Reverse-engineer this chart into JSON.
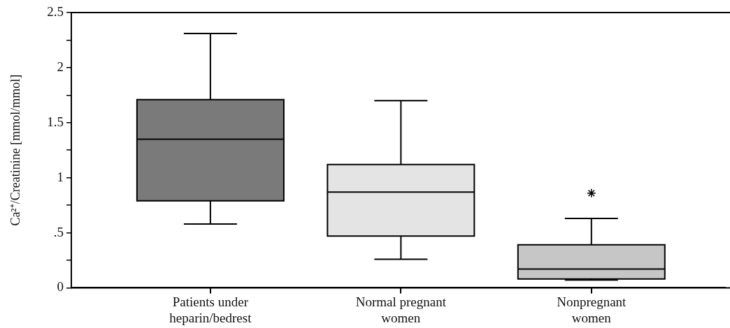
{
  "chart_data": {
    "type": "box",
    "ylabel": "Ca²⁺/Creatinine [mmol/mmol]",
    "categories": [
      "Patients under heparin/bedrest",
      "Normal pregnant women",
      "Nonpregnant women"
    ],
    "colors": [
      "#7a7a7a",
      "#e4e4e4",
      "#c6c6c6"
    ],
    "boxes": [
      {
        "low": 0.58,
        "q1": 0.79,
        "median": 1.35,
        "q3": 1.71,
        "high": 2.31
      },
      {
        "low": 0.26,
        "q1": 0.47,
        "median": 0.87,
        "q3": 1.12,
        "high": 1.7
      },
      {
        "low": 0.07,
        "q1": 0.08,
        "median": 0.17,
        "q3": 0.39,
        "high": 0.63,
        "outliers": [
          0.86
        ]
      }
    ],
    "marker": "star",
    "ylim": [
      0,
      2.5
    ],
    "yticks": [
      0,
      {
        "value": 0.25,
        "label": null
      },
      {
        "value": 0.5,
        "label": ".5"
      },
      {
        "value": 0.75,
        "label": null
      },
      1,
      {
        "value": 1.25,
        "label": null
      },
      1.5,
      {
        "value": 1.75,
        "label": null
      },
      2,
      {
        "value": 2.25,
        "label": null
      },
      2.5
    ],
    "grid": false,
    "legend": false
  }
}
